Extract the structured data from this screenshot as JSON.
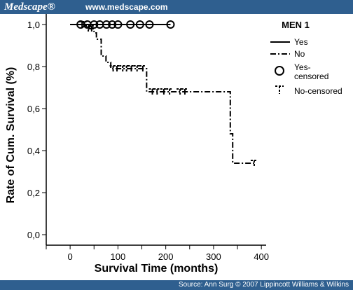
{
  "header": {
    "brand": "Medscape®",
    "url": "www.medscape.com",
    "background": "#2f5f8f"
  },
  "footer": {
    "source": "Source: Ann Surg © 2007 Lippincott Williams & Wilkins"
  },
  "chart_data": {
    "type": "line",
    "xlabel": "Survival Time (months)",
    "ylabel": "Rate of Cum. Survival (%)",
    "xlim": [
      -50,
      410
    ],
    "ylim": [
      -0.05,
      1.05
    ],
    "xticks": [
      0,
      100,
      200,
      300,
      400
    ],
    "xtick_labels": [
      "0",
      "100",
      "200",
      "300",
      "400"
    ],
    "yticks": [
      0.0,
      0.2,
      0.4,
      0.6,
      0.8,
      1.0
    ],
    "ytick_labels": [
      "0,0",
      "0,2",
      "0,4",
      "0,6",
      "0,8",
      "1,0"
    ],
    "grid": false,
    "legend": {
      "title": "MEN 1",
      "placement": "right",
      "entries": [
        "Yes",
        "No",
        "Yes-censored",
        "No-censored"
      ]
    },
    "series": [
      {
        "name": "Yes",
        "style": "solid",
        "x": [
          0,
          210
        ],
        "y": [
          1.0,
          1.0
        ],
        "censored": [
          {
            "x": 22,
            "y": 1.0
          },
          {
            "x": 36,
            "y": 1.0
          },
          {
            "x": 50,
            "y": 1.0
          },
          {
            "x": 62,
            "y": 1.0
          },
          {
            "x": 76,
            "y": 1.0
          },
          {
            "x": 88,
            "y": 1.0
          },
          {
            "x": 100,
            "y": 1.0
          },
          {
            "x": 126,
            "y": 1.0
          },
          {
            "x": 146,
            "y": 1.0
          },
          {
            "x": 166,
            "y": 1.0
          },
          {
            "x": 210,
            "y": 1.0
          }
        ]
      },
      {
        "name": "No",
        "style": "dash-dot",
        "steps": [
          {
            "x": 0,
            "y": 1.0
          },
          {
            "x": 35,
            "y": 0.98
          },
          {
            "x": 50,
            "y": 0.96
          },
          {
            "x": 55,
            "y": 0.93
          },
          {
            "x": 65,
            "y": 0.85
          },
          {
            "x": 75,
            "y": 0.82
          },
          {
            "x": 85,
            "y": 0.79
          },
          {
            "x": 160,
            "y": 0.68
          },
          {
            "x": 335,
            "y": 0.48
          },
          {
            "x": 340,
            "y": 0.34
          },
          {
            "x": 385,
            "y": 0.34
          }
        ],
        "censored": [
          {
            "x": 25,
            "y": 1.0
          },
          {
            "x": 30,
            "y": 1.0
          },
          {
            "x": 38,
            "y": 0.98
          },
          {
            "x": 45,
            "y": 0.98
          },
          {
            "x": 90,
            "y": 0.79
          },
          {
            "x": 98,
            "y": 0.79
          },
          {
            "x": 110,
            "y": 0.79
          },
          {
            "x": 118,
            "y": 0.79
          },
          {
            "x": 128,
            "y": 0.79
          },
          {
            "x": 140,
            "y": 0.79
          },
          {
            "x": 152,
            "y": 0.79
          },
          {
            "x": 172,
            "y": 0.68
          },
          {
            "x": 182,
            "y": 0.68
          },
          {
            "x": 196,
            "y": 0.68
          },
          {
            "x": 208,
            "y": 0.68
          },
          {
            "x": 230,
            "y": 0.68
          },
          {
            "x": 240,
            "y": 0.68
          },
          {
            "x": 385,
            "y": 0.34
          }
        ]
      }
    ]
  }
}
